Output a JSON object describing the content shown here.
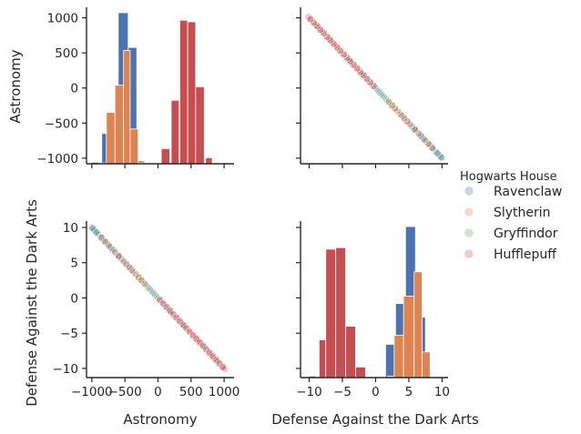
{
  "chart_data": {
    "type": "scatter",
    "kind": "pairplot",
    "variables": [
      "Astronomy",
      "Defense Against the Dark Arts"
    ],
    "hue_label": "Hogwarts House",
    "houses": [
      {
        "name": "Ravenclaw",
        "color": "#4c72b0"
      },
      {
        "name": "Slytherin",
        "color": "#dd8452"
      },
      {
        "name": "Gryffindor",
        "color": "#55a868"
      },
      {
        "name": "Hufflepuff",
        "color": "#c44e52"
      }
    ],
    "axes": {
      "Astronomy": {
        "lim": [
          -1080,
          1150
        ],
        "ticks": [
          -1000,
          -500,
          0,
          500,
          1000
        ],
        "tick_labels": [
          "−1000",
          "−500",
          "0",
          "500",
          "1000"
        ]
      },
      "Defense Against the Dark Arts": {
        "lim": [
          -11.3,
          10.9
        ],
        "ticks": [
          -10,
          -5,
          0,
          5,
          10
        ],
        "tick_labels": [
          "−10",
          "−5",
          "0",
          "5",
          "10"
        ]
      }
    },
    "diag_hist": {
      "Astronomy": {
        "ylim": [
          0,
          1.0
        ],
        "bars": [
          {
            "house": "Ravenclaw",
            "bins": [
              [
                -1000,
                -850,
                0.01
              ],
              [
                -850,
                -700,
                0.2
              ],
              [
                -700,
                -550,
                0.01
              ],
              [
                -600,
                -450,
                1.0
              ],
              [
                -450,
                -320,
                0.77
              ]
            ]
          },
          {
            "house": "Hufflepuff",
            "bins": [
              [
                50,
                180,
                0.1
              ],
              [
                200,
                320,
                0.42
              ],
              [
                330,
                450,
                0.95
              ],
              [
                450,
                570,
                0.94
              ],
              [
                570,
                700,
                0.51
              ],
              [
                720,
                820,
                0.04
              ]
            ]
          },
          {
            "house": "Slytherin",
            "bins": [
              [
                -780,
                -650,
                0.34
              ],
              [
                -650,
                -520,
                0.52
              ],
              [
                -520,
                -420,
                0.75
              ],
              [
                -420,
                -300,
                0.23
              ],
              [
                -300,
                -200,
                0.02
              ]
            ]
          },
          {
            "house": "Gryffindor",
            "bins": [
              [
                -900,
                -780,
                0.005
              ],
              [
                -300,
                -180,
                0.005
              ]
            ]
          }
        ]
      },
      "Defense Against the Dark Arts": {
        "ylim": [
          0,
          1.0
        ],
        "bars": [
          {
            "house": "Ravenclaw",
            "bins": [
              [
                1.5,
                3.0,
                0.22
              ],
              [
                3.0,
                4.5,
                0.49
              ],
              [
                4.5,
                6.0,
                1.0
              ],
              [
                6.0,
                7.5,
                0.4
              ]
            ]
          },
          {
            "house": "Hufflepuff",
            "bins": [
              [
                -10,
                -9,
                0.01
              ],
              [
                -8.5,
                -7.5,
                0.25
              ],
              [
                -7.5,
                -6,
                0.85
              ],
              [
                -6,
                -4.5,
                0.86
              ],
              [
                -4.5,
                -3,
                0.34
              ],
              [
                -3,
                -1.5,
                0.07
              ]
            ]
          },
          {
            "house": "Slytherin",
            "bins": [
              [
                1.8,
                2.8,
                0.01
              ],
              [
                2.8,
                4.2,
                0.28
              ],
              [
                4.2,
                5.8,
                0.54
              ],
              [
                5.8,
                7.0,
                0.7
              ],
              [
                7.0,
                8.2,
                0.17
              ]
            ]
          }
        ]
      }
    },
    "scatter_relation": {
      "slope": -0.01,
      "x_range": [
        -1000,
        1010
      ]
    },
    "scatter_samples": [
      {
        "house": "Gryffindor",
        "x": [
          -960,
          -900,
          -870,
          -780,
          -700,
          -600,
          -420,
          -300,
          -250,
          200,
          400,
          700,
          900
        ]
      },
      {
        "house": "Ravenclaw",
        "x": [
          -990,
          -930,
          -860,
          -820,
          -790,
          -760,
          -720,
          -680,
          -600,
          -550,
          -500,
          -470,
          -440,
          -400
        ]
      },
      {
        "house": "Slytherin",
        "x": [
          -850,
          -800,
          -740,
          -650,
          -590,
          -520,
          -480,
          -430,
          -380,
          -330,
          -290,
          -250,
          -200
        ]
      },
      {
        "house": "Hufflepuff",
        "x": [
          30,
          80,
          130,
          180,
          230,
          280,
          330,
          380,
          430,
          480,
          530,
          580,
          630,
          680,
          730,
          780,
          830,
          880,
          930,
          980
        ]
      }
    ]
  }
}
